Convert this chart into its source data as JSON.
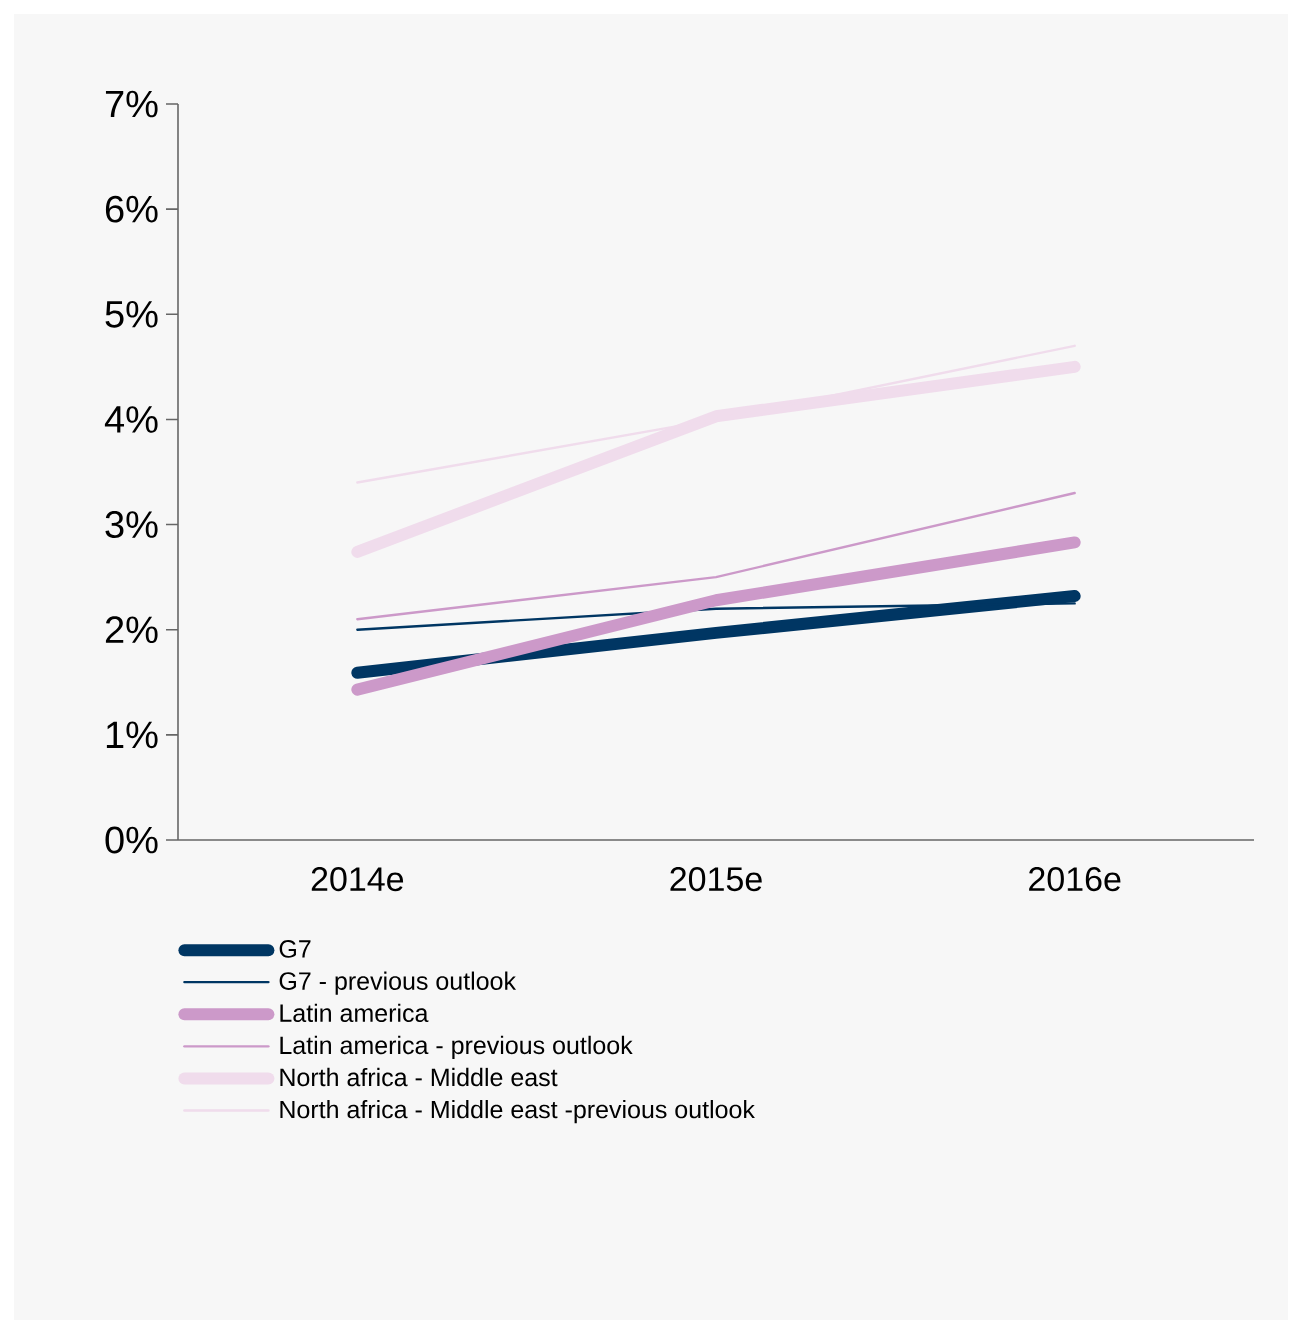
{
  "chart_data": {
    "type": "line",
    "categories": [
      "2014e",
      "2015e",
      "2016e"
    ],
    "series": [
      {
        "name": "G7",
        "color": "#003663",
        "values": [
          1.59,
          1.97,
          2.32
        ]
      },
      {
        "name": "G7 - previous outlook",
        "color": "#003663",
        "values": [
          2.0,
          2.2,
          2.25
        ]
      },
      {
        "name": "Latin america",
        "color": "#cc99c9",
        "values": [
          1.43,
          2.28,
          2.83
        ]
      },
      {
        "name": "Latin america - previous outlook",
        "color": "#cc99c9",
        "values": [
          2.1,
          2.5,
          3.3
        ]
      },
      {
        "name": "North africa - Middle east",
        "color": "#f0dcec",
        "values": [
          2.74,
          4.03,
          4.5
        ]
      },
      {
        "name": "North africa - Middle east -previous outlook",
        "color": "#f0dcec",
        "values": [
          3.4,
          4.0,
          4.7
        ]
      }
    ],
    "ylim": [
      0,
      7
    ],
    "yticks": [
      {
        "value": 0,
        "label": "0%"
      },
      {
        "value": 1,
        "label": "1%"
      },
      {
        "value": 2,
        "label": "2%"
      },
      {
        "value": 3,
        "label": "3%"
      },
      {
        "value": 4,
        "label": "4%"
      },
      {
        "value": 5,
        "label": "5%"
      },
      {
        "value": 6,
        "label": "6%"
      },
      {
        "value": 7,
        "label": "7%"
      }
    ],
    "grid": false,
    "legend": "bottom",
    "marker": "none",
    "line_style": "solid"
  }
}
